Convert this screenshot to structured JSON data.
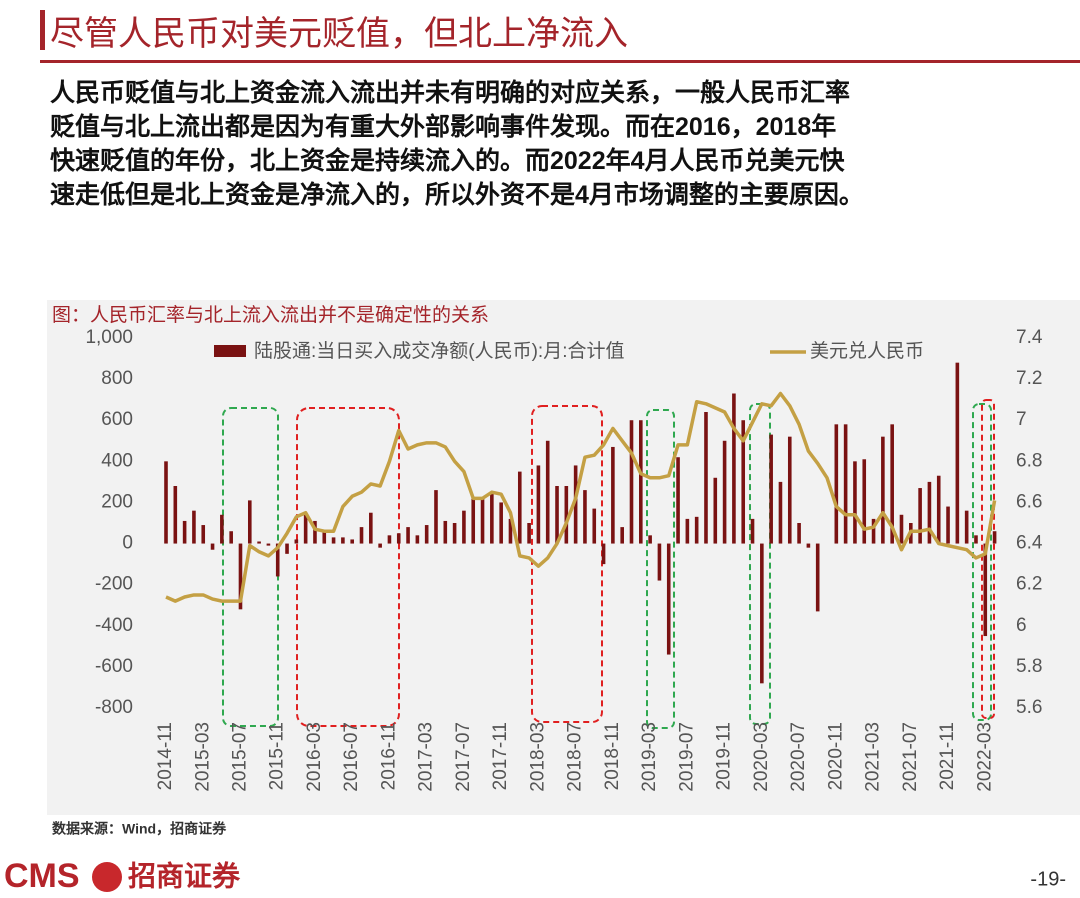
{
  "header": {
    "title": "尽管人民币对美元贬值，但北上净流入"
  },
  "body": {
    "lines": [
      "人民币贬值与北上资金流入流出并未有明确的对应关系，一般人民币汇率",
      "贬值与北上流出都是因为有重大外部影响事件发现。而在2016，2018年",
      "快速贬值的年份，北上资金是持续流入的。而2022年4月人民币兑美元快",
      "速走低但是北上资金是净流入的，所以外资不是4月市场调整的主要原因。"
    ]
  },
  "chart_data": {
    "type": "bar",
    "title": "图：人民币汇率与北上流入流出并不是确定性的关系",
    "categories": [
      "2014-11",
      null,
      null,
      null,
      "2015-03",
      null,
      null,
      null,
      "2015-07",
      null,
      null,
      null,
      "2015-11",
      null,
      null,
      null,
      "2016-03",
      null,
      null,
      null,
      "2016-07",
      null,
      null,
      null,
      "2016-11",
      null,
      null,
      null,
      "2017-03",
      null,
      null,
      null,
      "2017-07",
      null,
      null,
      null,
      "2017-11",
      null,
      null,
      null,
      "2018-03",
      null,
      null,
      null,
      "2018-07",
      null,
      null,
      null,
      "2018-11",
      null,
      null,
      null,
      "2019-03",
      null,
      null,
      null,
      "2019-07",
      null,
      null,
      null,
      "2019-11",
      null,
      null,
      null,
      "2020-03",
      null,
      null,
      null,
      "2020-07",
      null,
      null,
      null,
      "2020-11",
      null,
      null,
      null,
      "2021-03",
      null,
      null,
      null,
      "2021-07",
      null,
      null,
      null,
      "2021-11",
      null,
      null,
      null,
      "2022-03",
      null
    ],
    "series": [
      {
        "name": "陆股通:当日买入成交净额(人民币):月:合计值",
        "type": "bar",
        "color": "#7a1212",
        "values": [
          400,
          280,
          110,
          160,
          90,
          -30,
          140,
          60,
          -320,
          210,
          10,
          -10,
          -160,
          -50,
          20,
          150,
          110,
          60,
          30,
          30,
          20,
          80,
          150,
          -20,
          40,
          50,
          80,
          40,
          90,
          260,
          110,
          100,
          160,
          220,
          220,
          250,
          200,
          120,
          350,
          100,
          380,
          500,
          280,
          280,
          380,
          260,
          170,
          -100,
          470,
          80,
          600,
          600,
          40,
          -180,
          -540,
          420,
          120,
          130,
          640,
          320,
          500,
          730,
          600,
          120,
          -680,
          530,
          300,
          520,
          100,
          -20,
          -330,
          0,
          580,
          580,
          400,
          410,
          120,
          520,
          580,
          140,
          100,
          270,
          300,
          330,
          180,
          880,
          160,
          40,
          -450,
          60
        ]
      },
      {
        "name": "美元兑人民币",
        "type": "line",
        "axis": "y2",
        "color": "#c4a044",
        "values": [
          6.14,
          6.12,
          6.14,
          6.15,
          6.15,
          6.13,
          6.12,
          6.12,
          6.12,
          6.39,
          6.36,
          6.34,
          6.38,
          6.45,
          6.53,
          6.55,
          6.47,
          6.46,
          6.46,
          6.58,
          6.63,
          6.65,
          6.69,
          6.68,
          6.8,
          6.95,
          6.86,
          6.88,
          6.89,
          6.89,
          6.87,
          6.8,
          6.75,
          6.62,
          6.62,
          6.65,
          6.64,
          6.55,
          6.34,
          6.33,
          6.29,
          6.33,
          6.4,
          6.5,
          6.62,
          6.82,
          6.83,
          6.88,
          6.96,
          6.9,
          6.84,
          6.74,
          6.72,
          6.72,
          6.73,
          6.88,
          6.88,
          7.09,
          7.08,
          7.06,
          7.04,
          6.96,
          6.9,
          6.99,
          7.08,
          7.07,
          7.13,
          7.07,
          6.98,
          6.85,
          6.79,
          6.72,
          6.58,
          6.54,
          6.54,
          6.47,
          6.48,
          6.55,
          6.48,
          6.37,
          6.46,
          6.46,
          6.47,
          6.4,
          6.39,
          6.38,
          6.37,
          6.33,
          6.35,
          6.61
        ]
      }
    ],
    "ylim": [
      -800,
      1000
    ],
    "yticks": [
      -800,
      -600,
      -400,
      -200,
      0,
      200,
      400,
      600,
      800,
      {
        "value": 1000,
        "label": "1,000"
      }
    ],
    "y2lim": [
      5.6,
      7.4
    ],
    "y2ticks": [
      5.6,
      5.8,
      6,
      6.2,
      6.4,
      6.6,
      6.8,
      7,
      7.2,
      7.4
    ]
  },
  "footer": {
    "source": "数据来源：Wind，招商证券",
    "logo_en": "CMS",
    "logo_cn": "招商证券",
    "page": "-19-"
  }
}
